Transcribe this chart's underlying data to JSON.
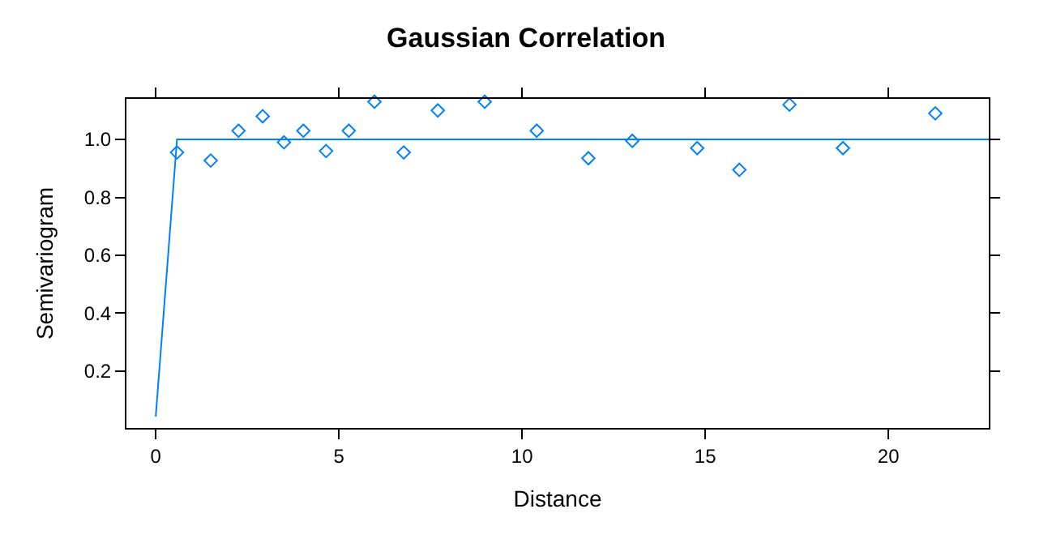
{
  "chart_data": {
    "type": "scatter",
    "title": "Gaussian Correlation",
    "xlabel": "Distance",
    "ylabel": "Semivariogram",
    "xlim": [
      -0.8,
      22.74
    ],
    "xticks": [
      0,
      5,
      10,
      15,
      20
    ],
    "ylim": [
      0.004,
      1.14
    ],
    "yticks": [
      0.2,
      0.4,
      0.6,
      0.8,
      {
        "value": 1,
        "label": "1.0"
      }
    ],
    "grid": false,
    "legend": false,
    "series": [
      {
        "marker": "diamond",
        "color": "#0080ff",
        "x": [
          0.58,
          1.5,
          2.26,
          2.92,
          3.5,
          4.03,
          4.65,
          5.27,
          5.97,
          6.77,
          7.7,
          8.98,
          10.4,
          11.81,
          13.01,
          14.78,
          15.93,
          17.3,
          18.76,
          21.28
        ],
        "values": [
          0.955,
          0.927,
          1.03,
          1.08,
          0.99,
          1.03,
          0.96,
          1.03,
          1.13,
          0.955,
          1.1,
          1.13,
          1.03,
          0.935,
          0.995,
          0.97,
          0.895,
          1.12,
          0.97,
          1.09
        ]
      },
      {
        "type": "line",
        "color": "#0080ff",
        "x": [
          0,
          0.58,
          22.74
        ],
        "values": [
          0.043,
          1.0,
          1.0
        ]
      }
    ]
  }
}
